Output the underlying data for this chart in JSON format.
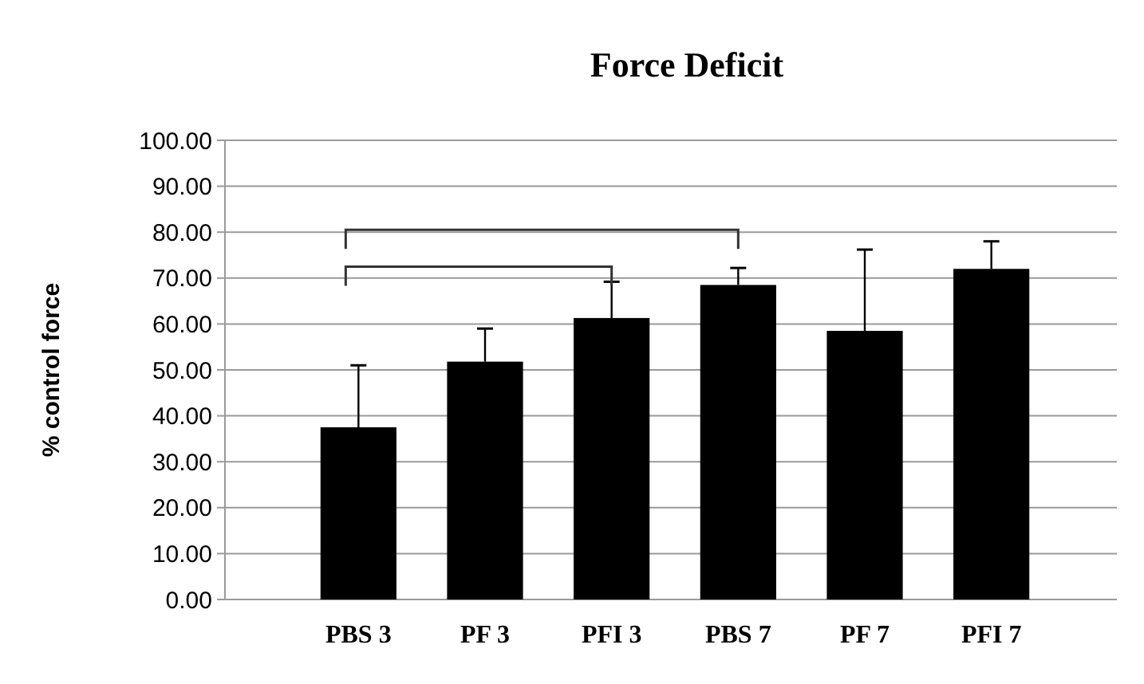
{
  "chart_data": {
    "type": "bar",
    "title": "Force Deficit",
    "ylabel": "% control force",
    "categories": [
      "PBS 3",
      "PF 3",
      "PFI 3",
      "PBS 7",
      "PF 7",
      "PFI 7"
    ],
    "values": [
      37.5,
      51.8,
      61.3,
      68.5,
      58.5,
      72.0
    ],
    "errors": [
      [
        37.5,
        51.0
      ],
      [
        51.8,
        59.0
      ],
      [
        61.3,
        69.2
      ],
      [
        68.5,
        72.2
      ],
      [
        58.5,
        76.2
      ],
      [
        72.0,
        78.0
      ]
    ],
    "color": "#000000",
    "ylim": [
      0,
      100
    ],
    "yticks": [
      {
        "value": 0,
        "label": "0.00"
      },
      {
        "value": 10,
        "label": "10.00"
      },
      {
        "value": 20,
        "label": "20.00"
      },
      {
        "value": 30,
        "label": "30.00"
      },
      {
        "value": 40,
        "label": "40.00"
      },
      {
        "value": 50,
        "label": "50.00"
      },
      {
        "value": 60,
        "label": "60.00"
      },
      {
        "value": 70,
        "label": "70.00"
      },
      {
        "value": 80,
        "label": "80.00"
      },
      {
        "value": 90,
        "label": "90.00"
      },
      {
        "value": 100,
        "label": "100.00"
      }
    ],
    "grid": "y"
  }
}
